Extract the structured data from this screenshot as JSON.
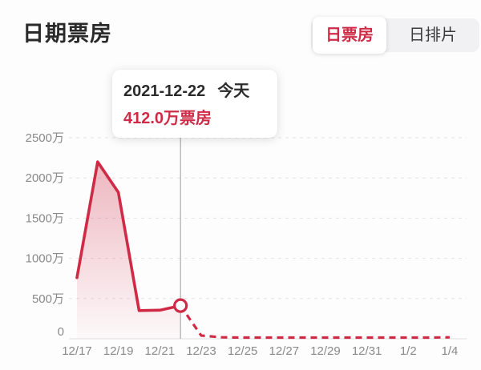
{
  "header": {
    "title": "日期票房"
  },
  "tabs": [
    {
      "label": "日票房",
      "active": true
    },
    {
      "label": "日排片",
      "active": false
    }
  ],
  "tooltip": {
    "date": "2021-12-22",
    "date_suffix": "今天",
    "value": "412.0万票房"
  },
  "colors": {
    "accent": "#cf2b47",
    "title": "#2a2a2a",
    "tick": "#8a8a8a",
    "grid": "#e4e4e4",
    "axis_line": "#e0e0e0",
    "guide": "#9c9c9c",
    "tab_bg": "#f1f1f3",
    "tab_inactive_text": "#3c3c3c",
    "page_bg": "#fdfdfd"
  },
  "chart_data": {
    "type": "line",
    "title": "日期票房",
    "unit": "万",
    "ylim": [
      0,
      2500
    ],
    "grid": "dashed-horizontal",
    "legend": "none",
    "x": [
      "12/17",
      "12/18",
      "12/19",
      "12/20",
      "12/21",
      "12/22",
      "12/23",
      "12/24",
      "12/25",
      "12/26",
      "12/27",
      "12/28",
      "12/29",
      "12/30",
      "12/31",
      "1/1",
      "1/2",
      "1/3",
      "1/4"
    ],
    "x_tick_labels": [
      "12/17",
      "12/19",
      "12/21",
      "12/23",
      "12/25",
      "12/27",
      "12/29",
      "12/31",
      "1/2",
      "1/4"
    ],
    "y_ticks": [
      {
        "value": 0,
        "label": "0"
      },
      {
        "value": 500,
        "label": "500万"
      },
      {
        "value": 1000,
        "label": "1000万"
      },
      {
        "value": 1500,
        "label": "1500万"
      },
      {
        "value": 2000,
        "label": "2000万"
      },
      {
        "value": 2500,
        "label": "2500万"
      }
    ],
    "series": [
      {
        "name": "日票房",
        "solid_until_index": 5,
        "values": [
          760,
          2200,
          1820,
          350,
          355,
          412,
          40,
          18,
          15,
          15,
          15,
          15,
          15,
          15,
          15,
          15,
          15,
          15,
          18
        ]
      }
    ],
    "highlight": {
      "index": 5,
      "date": "2021-12-22",
      "value": 412.0,
      "note": "今天"
    }
  }
}
